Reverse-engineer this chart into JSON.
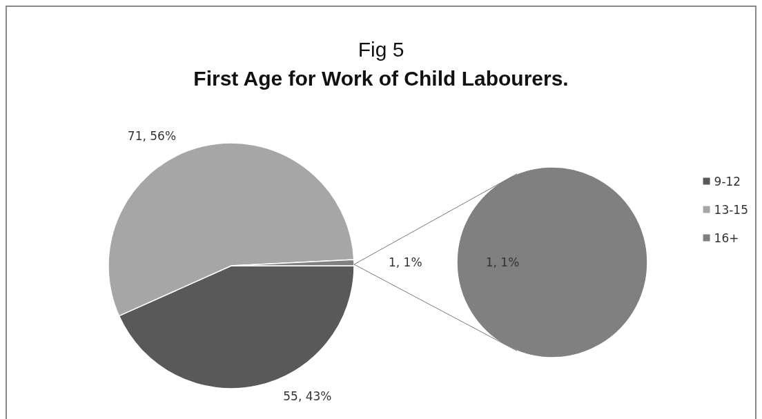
{
  "chart_data": [
    {
      "type": "pie",
      "title": "Fig 5",
      "subtitle": "First Age for Work of Child Labourers.",
      "categories": [
        "9-12",
        "13-15",
        "16+"
      ],
      "values": [
        55,
        71,
        1
      ],
      "colors": [
        "#595959",
        "#a6a6a6",
        "#808080"
      ],
      "value_labels": [
        "55, 43%",
        "71, 56%",
        "1, 1%"
      ],
      "legend": "right"
    },
    {
      "type": "pie",
      "categories": [
        null
      ],
      "values": [
        1
      ],
      "colors": [
        "#808080"
      ],
      "value_labels": [
        "1, 1%"
      ]
    }
  ]
}
